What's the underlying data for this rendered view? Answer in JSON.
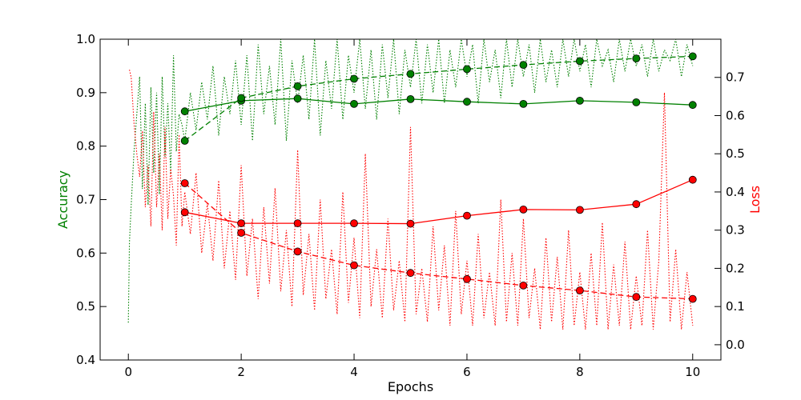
{
  "chart_data": {
    "type": "line",
    "xlabel": "Epochs",
    "ylabel_left": "Accuracy",
    "ylabel_right": "Loss",
    "colors": {
      "accuracy": "#008000",
      "loss": "#ff0000",
      "axes": "#000000"
    },
    "xlim": [
      -0.5,
      10.5
    ],
    "ylim_left": [
      0.4,
      1.0
    ],
    "ylim_right": [
      -0.04,
      0.8
    ],
    "x_ticks": [
      0,
      2,
      4,
      6,
      8,
      10
    ],
    "y_left_ticks": [
      0.4,
      0.5,
      0.6,
      0.7,
      0.8,
      0.9,
      1.0
    ],
    "y_right_ticks": [
      0.0,
      0.1,
      0.2,
      0.3,
      0.4,
      0.5,
      0.6,
      0.7
    ],
    "x_tick_labels": [
      "0",
      "2",
      "4",
      "6",
      "8",
      "10"
    ],
    "y_left_tick_labels": [
      "0.4",
      "0.5",
      "0.6",
      "0.7",
      "0.8",
      "0.9",
      "1.0"
    ],
    "y_right_tick_labels": [
      "0.0",
      "0.1",
      "0.2",
      "0.3",
      "0.4",
      "0.5",
      "0.6",
      "0.7"
    ],
    "grid": false,
    "series": [
      {
        "key": "acc_solid",
        "axis": "left",
        "color": "#008000",
        "style": "solid-markers",
        "x": [
          1,
          2,
          3,
          4,
          5,
          6,
          7,
          8,
          9,
          10
        ],
        "y": [
          0.865,
          0.885,
          0.889,
          0.879,
          0.888,
          0.883,
          0.879,
          0.885,
          0.882,
          0.877
        ]
      },
      {
        "key": "acc_dashed",
        "axis": "left",
        "color": "#008000",
        "style": "dashed-markers",
        "x": [
          1,
          2,
          3,
          4,
          5,
          6,
          7,
          8,
          9,
          10
        ],
        "y": [
          0.81,
          0.89,
          0.912,
          0.926,
          0.935,
          0.944,
          0.952,
          0.959,
          0.964,
          0.968
        ]
      },
      {
        "key": "loss_solid",
        "axis": "right",
        "color": "#ff0000",
        "style": "solid-markers",
        "x": [
          1,
          2,
          3,
          4,
          5,
          6,
          7,
          8,
          9,
          10
        ],
        "y": [
          0.347,
          0.318,
          0.318,
          0.318,
          0.317,
          0.338,
          0.354,
          0.353,
          0.368,
          0.432
        ]
      },
      {
        "key": "loss_dashed",
        "axis": "right",
        "color": "#ff0000",
        "style": "dashed-markers",
        "x": [
          1,
          2,
          3,
          4,
          5,
          6,
          7,
          8,
          9,
          10
        ],
        "y": [
          0.423,
          0.293,
          0.244,
          0.208,
          0.188,
          0.172,
          0.155,
          0.142,
          0.125,
          0.12
        ]
      },
      {
        "key": "acc_batch",
        "axis": "left",
        "color": "#008000",
        "style": "dotted",
        "x": [
          0.0,
          0.02,
          0.05,
          0.1,
          0.15,
          0.2,
          0.25,
          0.3,
          0.35,
          0.4,
          0.45,
          0.5,
          0.55,
          0.6,
          0.65,
          0.7,
          0.75,
          0.8,
          0.85,
          0.9,
          0.95,
          1.0,
          1.1,
          1.2,
          1.3,
          1.4,
          1.5,
          1.6,
          1.7,
          1.8,
          1.9,
          2.0,
          2.1,
          2.2,
          2.3,
          2.4,
          2.5,
          2.6,
          2.7,
          2.8,
          2.9,
          3.0,
          3.1,
          3.2,
          3.3,
          3.4,
          3.5,
          3.6,
          3.7,
          3.8,
          3.9,
          4.0,
          4.1,
          4.2,
          4.3,
          4.4,
          4.5,
          4.6,
          4.7,
          4.8,
          4.9,
          5.0,
          5.1,
          5.2,
          5.3,
          5.4,
          5.5,
          5.6,
          5.7,
          5.8,
          5.9,
          6.0,
          6.1,
          6.2,
          6.3,
          6.4,
          6.5,
          6.6,
          6.7,
          6.8,
          6.9,
          7.0,
          7.1,
          7.2,
          7.3,
          7.4,
          7.5,
          7.6,
          7.7,
          7.8,
          7.9,
          8.0,
          8.1,
          8.2,
          8.3,
          8.4,
          8.5,
          8.6,
          8.7,
          8.8,
          8.9,
          9.0,
          9.1,
          9.2,
          9.3,
          9.4,
          9.5,
          9.6,
          9.7,
          9.8,
          9.9,
          10.0
        ],
        "y": [
          0.47,
          0.62,
          0.69,
          0.79,
          0.86,
          0.93,
          0.72,
          0.88,
          0.69,
          0.91,
          0.75,
          0.9,
          0.71,
          0.93,
          0.78,
          0.88,
          0.75,
          0.97,
          0.79,
          0.86,
          0.84,
          0.81,
          0.9,
          0.83,
          0.92,
          0.85,
          0.95,
          0.82,
          0.93,
          0.86,
          0.96,
          0.84,
          0.97,
          0.81,
          0.99,
          0.86,
          0.95,
          0.84,
          1.0,
          0.81,
          0.96,
          0.88,
          0.97,
          0.85,
          1.0,
          0.82,
          0.96,
          0.87,
          1.0,
          0.85,
          0.97,
          0.9,
          1.0,
          0.87,
          0.98,
          0.85,
          0.99,
          0.89,
          1.0,
          0.86,
          0.98,
          0.91,
          1.0,
          0.88,
          0.99,
          0.9,
          1.0,
          0.88,
          0.98,
          0.91,
          1.0,
          0.93,
          0.99,
          0.88,
          1.0,
          0.92,
          0.98,
          0.89,
          1.0,
          0.91,
          1.0,
          0.93,
          0.99,
          0.9,
          1.0,
          0.92,
          0.98,
          0.91,
          1.0,
          0.93,
          1.0,
          0.94,
          0.99,
          0.91,
          1.0,
          0.95,
          0.98,
          0.92,
          1.0,
          0.94,
          1.0,
          0.95,
          0.99,
          0.93,
          1.0,
          0.94,
          0.98,
          0.96,
          1.0,
          0.93,
          0.99,
          0.95
        ]
      },
      {
        "key": "loss_batch",
        "axis": "right",
        "color": "#ff0000",
        "style": "dotted",
        "x": [
          0.02,
          0.05,
          0.1,
          0.15,
          0.2,
          0.25,
          0.3,
          0.35,
          0.4,
          0.45,
          0.5,
          0.55,
          0.6,
          0.65,
          0.7,
          0.75,
          0.8,
          0.85,
          0.9,
          0.95,
          1.0,
          1.1,
          1.2,
          1.3,
          1.4,
          1.5,
          1.6,
          1.7,
          1.8,
          1.9,
          2.0,
          2.1,
          2.2,
          2.3,
          2.4,
          2.5,
          2.6,
          2.7,
          2.8,
          2.9,
          3.0,
          3.1,
          3.2,
          3.3,
          3.4,
          3.5,
          3.6,
          3.7,
          3.8,
          3.9,
          4.0,
          4.1,
          4.2,
          4.3,
          4.4,
          4.5,
          4.6,
          4.7,
          4.8,
          4.9,
          5.0,
          5.1,
          5.2,
          5.3,
          5.4,
          5.5,
          5.6,
          5.7,
          5.8,
          5.9,
          6.0,
          6.1,
          6.2,
          6.3,
          6.4,
          6.5,
          6.6,
          6.7,
          6.8,
          6.9,
          7.0,
          7.1,
          7.2,
          7.3,
          7.4,
          7.5,
          7.6,
          7.7,
          7.8,
          7.9,
          8.0,
          8.1,
          8.2,
          8.3,
          8.4,
          8.5,
          8.6,
          8.7,
          8.8,
          8.9,
          9.0,
          9.1,
          9.2,
          9.3,
          9.4,
          9.5,
          9.6,
          9.7,
          9.8,
          9.9,
          10.0
        ],
        "y": [
          0.72,
          0.7,
          0.58,
          0.5,
          0.44,
          0.56,
          0.36,
          0.47,
          0.31,
          0.61,
          0.36,
          0.5,
          0.3,
          0.57,
          0.33,
          0.46,
          0.39,
          0.26,
          0.55,
          0.31,
          0.4,
          0.29,
          0.45,
          0.24,
          0.37,
          0.22,
          0.43,
          0.2,
          0.35,
          0.17,
          0.47,
          0.18,
          0.33,
          0.12,
          0.36,
          0.16,
          0.41,
          0.14,
          0.3,
          0.1,
          0.51,
          0.13,
          0.29,
          0.09,
          0.38,
          0.12,
          0.25,
          0.08,
          0.4,
          0.11,
          0.28,
          0.07,
          0.5,
          0.1,
          0.25,
          0.07,
          0.33,
          0.09,
          0.22,
          0.06,
          0.57,
          0.08,
          0.2,
          0.06,
          0.31,
          0.09,
          0.26,
          0.05,
          0.35,
          0.08,
          0.22,
          0.05,
          0.29,
          0.07,
          0.19,
          0.05,
          0.38,
          0.06,
          0.24,
          0.05,
          0.33,
          0.07,
          0.2,
          0.04,
          0.28,
          0.06,
          0.23,
          0.04,
          0.3,
          0.05,
          0.19,
          0.04,
          0.24,
          0.05,
          0.32,
          0.04,
          0.21,
          0.05,
          0.27,
          0.04,
          0.18,
          0.05,
          0.3,
          0.04,
          0.22,
          0.66,
          0.06,
          0.25,
          0.04,
          0.19,
          0.05
        ]
      }
    ]
  }
}
